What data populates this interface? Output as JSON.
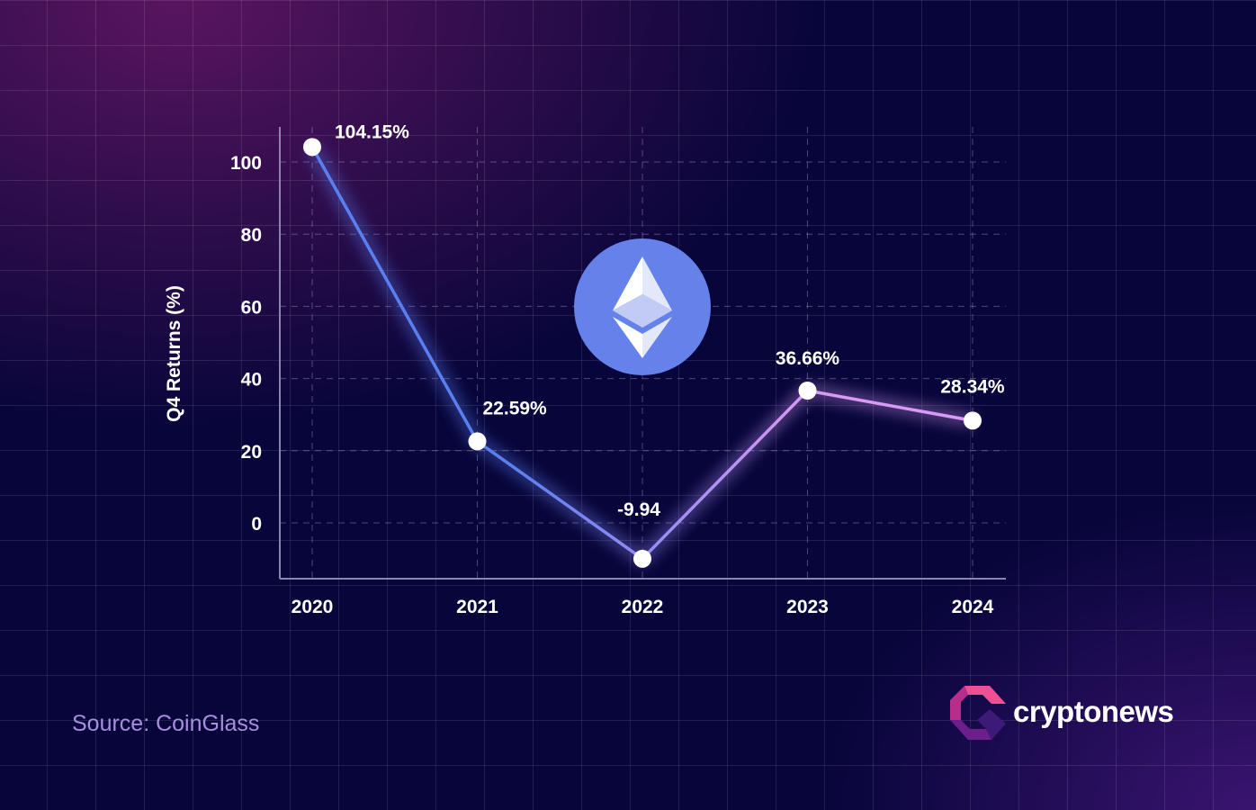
{
  "chart_data": {
    "type": "line",
    "categories": [
      "2020",
      "2021",
      "2022",
      "2023",
      "2024"
    ],
    "values": [
      104.15,
      22.59,
      -9.94,
      36.66,
      28.34
    ],
    "data_labels": [
      "104.15%",
      "22.59%",
      "-9.94",
      "36.66%",
      "28.34%"
    ],
    "xlabel": "",
    "ylabel": "Q4 Returns (%)",
    "yticks": [
      0,
      20,
      40,
      60,
      80,
      100
    ],
    "ylim": [
      -15.5,
      110
    ],
    "grid": true,
    "line_colors": [
      "#5b7ff0",
      "#d89af5"
    ],
    "center_icon": "ethereum-logo",
    "icon_color": "#6482ea"
  },
  "footer": {
    "source": "Source: CoinGlass",
    "brand": "cryptonews"
  }
}
